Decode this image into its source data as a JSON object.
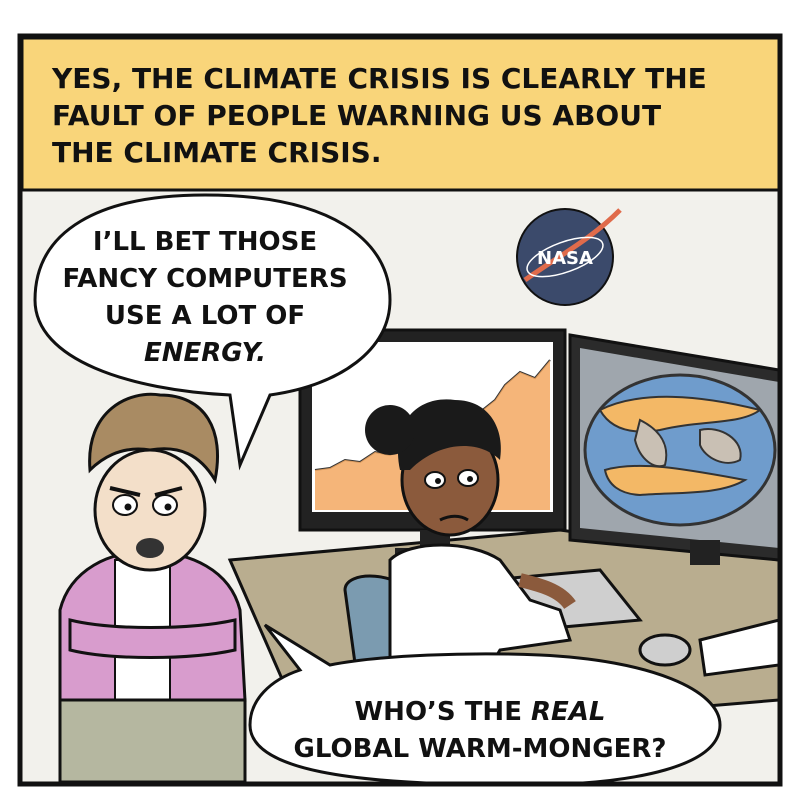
{
  "caption": {
    "line1": "YES, THE CLIMATE CRISIS IS CLEARLY THE",
    "line2": "FAULT OF PEOPLE WARNING US ABOUT",
    "line3": "THE CLIMATE CRISIS."
  },
  "bubble_top": {
    "line1": "I’LL BET THOSE",
    "line2": "FANCY COMPUTERS",
    "line3": "USE A LOT OF",
    "line4": "ENERGY."
  },
  "bubble_bottom": {
    "line1_plain": "WHO’S THE ",
    "line1_emph": "REAL",
    "line2": "GLOBAL WARM-MONGER?"
  },
  "logo": {
    "text": "NASA"
  },
  "colors": {
    "caption_bg": "#f9d57a",
    "wall": "#f2f1ec",
    "desk": "#b9ad8f",
    "cardigan": "#d89ccd",
    "hair": "#a98b63",
    "skin_light": "#f3dfc9",
    "skin_dark": "#8b5a3c",
    "nasa_blue": "#3b4a6b",
    "chart_orange": "#f3a862",
    "map_blue": "#6f9ccc",
    "chair": "#7b9bb0"
  },
  "icons": [
    "nasa-logo-icon",
    "sea-ice-chart",
    "world-map-heat"
  ]
}
